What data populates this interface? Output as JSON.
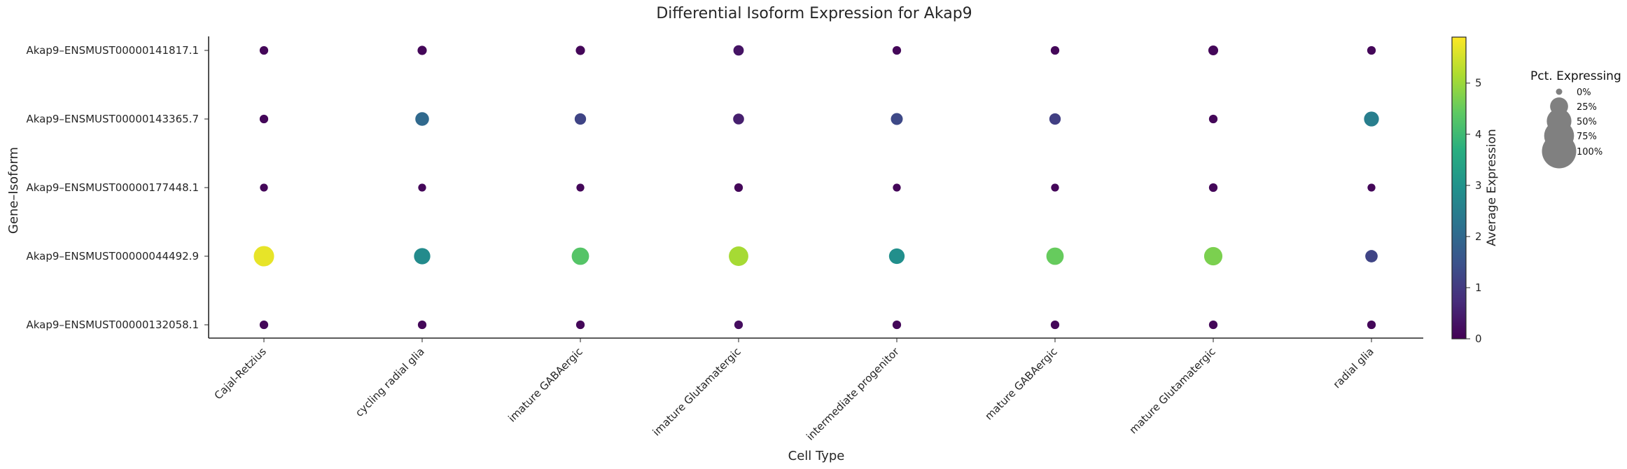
{
  "chart_data": {
    "type": "scatter",
    "title": "Differential Isoform Expression for Akap9",
    "xlabel": "Cell Type",
    "ylabel": "Gene–Isoform",
    "categories": [
      "Cajal-Retzius",
      "cycling radial glia",
      "imature GABAergic",
      "imature Glutamatergic",
      "intermediate progenitor",
      "mature GABAergic",
      "mature Glutamatergic",
      "radial glia"
    ],
    "rows": [
      "Akap9–ENSMUST00000141817.1",
      "Akap9–ENSMUST00000143365.7",
      "Akap9–ENSMUST00000177448.1",
      "Akap9–ENSMUST00000044492.9",
      "Akap9–ENSMUST00000132058.1"
    ],
    "avg_expression": [
      [
        0.1,
        0.1,
        0.1,
        0.3,
        0.1,
        0.1,
        0.1,
        0.1
      ],
      [
        0.1,
        2.0,
        1.2,
        0.5,
        1.3,
        1.1,
        0.1,
        2.5
      ],
      [
        0.1,
        0.1,
        0.1,
        0.1,
        0.1,
        0.1,
        0.1,
        0.1
      ],
      [
        5.7,
        2.8,
        4.3,
        5.1,
        2.9,
        4.5,
        4.7,
        1.2
      ],
      [
        0.1,
        0.1,
        0.1,
        0.2,
        0.1,
        0.1,
        0.1,
        0.1
      ]
    ],
    "pct_expressing": [
      [
        3,
        4,
        4,
        6,
        3,
        3,
        5,
        3
      ],
      [
        3,
        13,
        8,
        7,
        9,
        8,
        3,
        16
      ],
      [
        2,
        2,
        2,
        3,
        2,
        2,
        3,
        2
      ],
      [
        33,
        20,
        23,
        30,
        18,
        23,
        26,
        10
      ],
      [
        3,
        3,
        3,
        3,
        3,
        3,
        3,
        3
      ]
    ],
    "colorbar": {
      "label": "Average Expression",
      "range": [
        0,
        5.9
      ],
      "ticks": [
        "0",
        "1",
        "2",
        "3",
        "4",
        "5"
      ],
      "colormap": "viridis"
    },
    "size_legend": {
      "title": "Pct. Expressing",
      "entries": [
        {
          "label": "0%",
          "value": 0
        },
        {
          "label": "25%",
          "value": 25
        },
        {
          "label": "50%",
          "value": 50
        },
        {
          "label": "75%",
          "value": 75
        },
        {
          "label": "100%",
          "value": 100
        }
      ],
      "color": "#808080"
    },
    "grid": false
  }
}
